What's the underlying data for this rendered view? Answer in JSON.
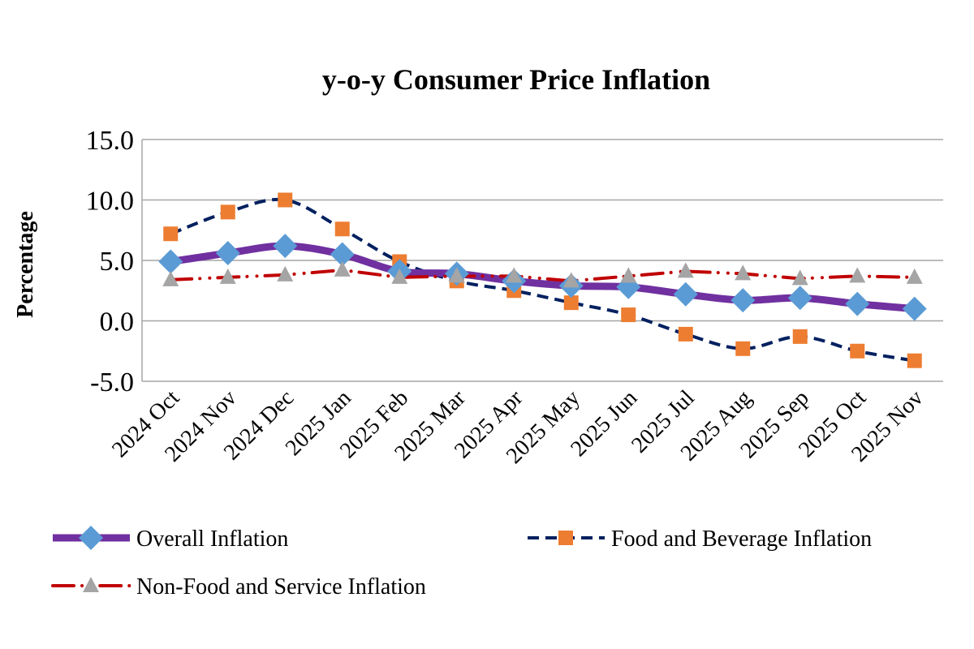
{
  "chart_data": {
    "type": "line",
    "title": "y-o-y Consumer Price Inflation",
    "xlabel": "",
    "ylabel": "Percentage",
    "ylim": [
      -5,
      15
    ],
    "yticks": [
      "15.0",
      "10.0",
      "5.0",
      "0.0",
      "-5.0"
    ],
    "ytick_values": [
      15,
      10,
      5,
      0,
      -5
    ],
    "grid": "horizontal",
    "legend_position": "bottom",
    "categories": [
      "2024 Oct",
      "2024 Nov",
      "2024 Dec",
      "2025 Jan",
      "2025 Feb",
      "2025 Mar",
      "2025 Apr",
      "2025 May",
      "2025 Jun",
      "2025 Jul",
      "2025 Aug",
      "2025 Sep",
      "2025 Oct",
      "2025 Nov"
    ],
    "series": [
      {
        "name": "Overall Inflation",
        "color": "#7030a0",
        "marker": "diamond",
        "marker_color": "#5b9bd5",
        "line": "solid-smooth",
        "values": [
          4.9,
          5.6,
          6.2,
          5.5,
          4.1,
          3.9,
          3.3,
          2.9,
          2.8,
          2.2,
          1.7,
          1.9,
          1.4,
          1.0
        ]
      },
      {
        "name": "Food and Beverage Inflation",
        "color": "#002060",
        "marker": "square",
        "marker_color": "#ed7d31",
        "line": "dashed-smooth",
        "values": [
          7.2,
          9.0,
          10.0,
          7.6,
          4.9,
          3.3,
          2.5,
          1.5,
          0.5,
          -1.1,
          -2.3,
          -1.3,
          -2.5,
          -3.3
        ]
      },
      {
        "name": "Non-Food and Service Inflation",
        "color": "#c00000",
        "marker": "triangle",
        "marker_color": "#a5a5a5",
        "line": "dash-dot",
        "values": [
          3.4,
          3.6,
          3.8,
          4.2,
          3.6,
          3.7,
          3.7,
          3.3,
          3.7,
          4.1,
          3.9,
          3.5,
          3.7,
          3.6
        ]
      }
    ]
  }
}
